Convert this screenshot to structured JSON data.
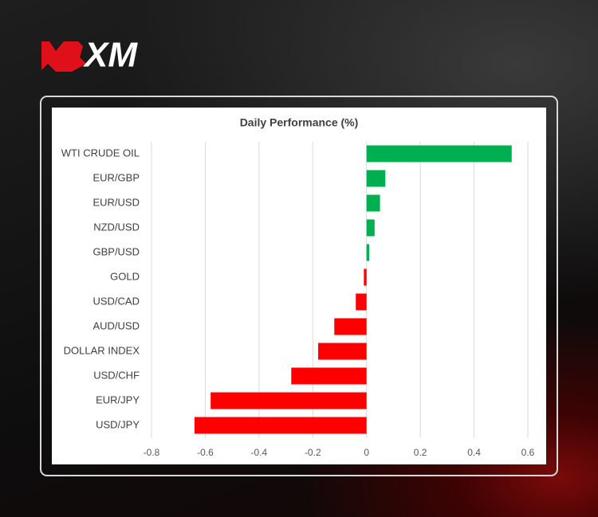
{
  "brand": "XM",
  "chart_data": {
    "type": "hbar",
    "title": "Daily Performance (%)",
    "categories": [
      "WTI CRUDE OIL",
      "EUR/GBP",
      "EUR/USD",
      "NZD/USD",
      "GBP/USD",
      "GOLD",
      "USD/CAD",
      "AUD/USD",
      "DOLLAR INDEX",
      "USD/CHF",
      "EUR/JPY",
      "USD/JPY"
    ],
    "values": [
      0.54,
      0.07,
      0.05,
      0.03,
      0.01,
      -0.01,
      -0.04,
      -0.12,
      -0.18,
      -0.28,
      -0.58,
      -0.64
    ],
    "positive_color": "#00b050",
    "negative_color": "#ff0000",
    "xlim": [
      -0.8,
      0.6
    ],
    "xticks": [
      -0.8,
      -0.6,
      -0.4,
      -0.2,
      0,
      0.2,
      0.4,
      0.6
    ],
    "grid": true
  }
}
